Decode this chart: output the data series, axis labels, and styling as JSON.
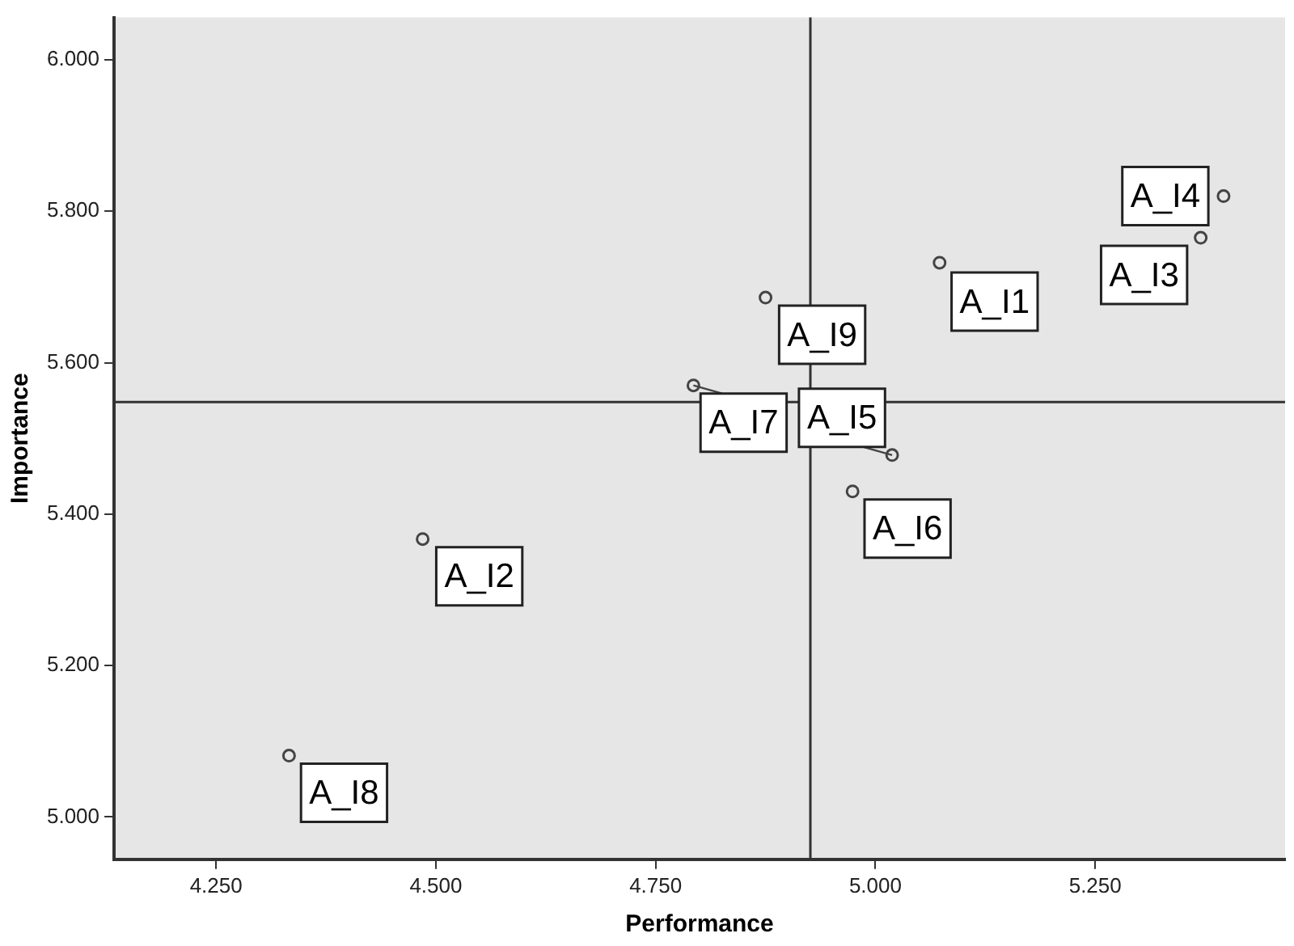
{
  "chart_data": {
    "type": "scatter",
    "xlabel": "Performance",
    "ylabel": "Importance",
    "series": [
      {
        "color": "#444444",
        "x": [
          5.073,
          4.485,
          5.37,
          5.396,
          5.019,
          4.974,
          4.793,
          4.333,
          4.875
        ],
        "values": [
          5.732,
          5.367,
          5.765,
          5.82,
          5.478,
          5.43,
          5.57,
          5.081,
          5.686
        ],
        "value_labels": [
          "A_I1",
          "A_I2",
          "A_I3",
          "A_I4",
          "A_I5",
          "A_I6",
          "A_I7",
          "A_I8",
          "A_I9"
        ]
      }
    ],
    "xlim": [
      4.134,
      5.466
    ],
    "ylim": [
      4.944,
      6.056
    ],
    "xticks": [
      {
        "value": 4.25,
        "label": "4.250"
      },
      {
        "value": 4.5,
        "label": "4.500"
      },
      {
        "value": 4.75,
        "label": "4.750"
      },
      {
        "value": 5.0,
        "label": "5.000"
      },
      {
        "value": 5.25,
        "label": "5.250"
      }
    ],
    "yticks": [
      {
        "value": 5.0,
        "label": "5.000"
      },
      {
        "value": 5.2,
        "label": "5.200"
      },
      {
        "value": 5.4,
        "label": "5.400"
      },
      {
        "value": 5.6,
        "label": "5.600"
      },
      {
        "value": 5.8,
        "label": "5.800"
      },
      {
        "value": 6.0,
        "label": "6.000"
      }
    ],
    "ref_lines": [
      {
        "axis": "x",
        "value": 4.926,
        "color": "#333333"
      },
      {
        "axis": "y",
        "value": 5.548,
        "color": "#333333"
      }
    ],
    "grid": false,
    "legend": false,
    "marker": "circle"
  }
}
